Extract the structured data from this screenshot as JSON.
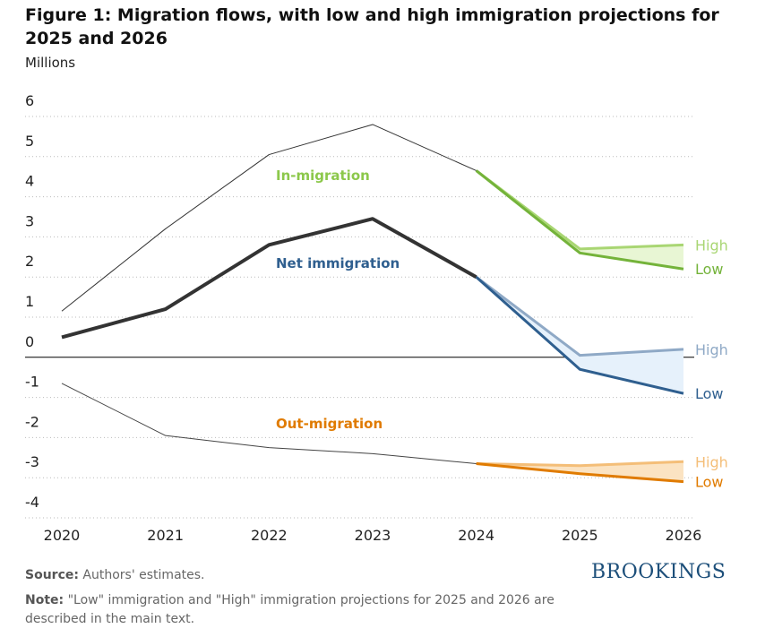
{
  "chart_data": {
    "type": "line",
    "title": "Figure 1: Migration flows, with low and high immigration projections for 2025 and 2026",
    "y_label": "Millions",
    "x": [
      2020,
      2021,
      2022,
      2023,
      2024,
      2025,
      2026
    ],
    "xlim": [
      2020,
      2026
    ],
    "xticks": [
      2020,
      2021,
      2022,
      2023,
      2024,
      2025,
      2026
    ],
    "ylim": [
      -4,
      6
    ],
    "yticks": [
      -4,
      -3,
      -2,
      -1,
      0,
      1,
      2,
      3,
      4,
      5,
      6
    ],
    "grid": true,
    "series": [
      {
        "name": "In-migration",
        "color": "#333333",
        "label_color": "#8cc84b",
        "high_color": "#a9d673",
        "low_color": "#74b33a",
        "fill_color": "#e8f6d4",
        "line_width": 1,
        "values": [
          1.15,
          3.2,
          5.05,
          5.8,
          4.65,
          null,
          null
        ],
        "high": [
          null,
          null,
          null,
          null,
          null,
          2.7,
          2.8
        ],
        "low": [
          null,
          null,
          null,
          null,
          null,
          2.6,
          2.2
        ],
        "high_label": "High",
        "low_label": "Low"
      },
      {
        "name": "Net immigration",
        "color": "#333333",
        "label_color": "#2f5f8f",
        "high_color": "#8fa9c6",
        "low_color": "#2f5f8f",
        "fill_color": "#e6f1fb",
        "line_width": 4,
        "values": [
          0.5,
          1.2,
          2.8,
          3.45,
          2.0,
          null,
          null
        ],
        "high": [
          null,
          null,
          null,
          null,
          null,
          0.05,
          0.2
        ],
        "low": [
          null,
          null,
          null,
          null,
          null,
          -0.3,
          -0.9
        ],
        "high_label": "High",
        "low_label": "Low"
      },
      {
        "name": "Out-migration",
        "color": "#444444",
        "label_color": "#e07b00",
        "high_color": "#f4be78",
        "low_color": "#e07b00",
        "fill_color": "#fbe3c2",
        "line_width": 1,
        "values": [
          -0.65,
          -1.95,
          -2.25,
          -2.4,
          -2.65,
          null,
          null
        ],
        "high": [
          null,
          null,
          null,
          null,
          null,
          -2.7,
          -2.6
        ],
        "low": [
          null,
          null,
          null,
          null,
          null,
          -2.9,
          -3.1
        ],
        "high_label": "High",
        "low_label": "Low"
      }
    ],
    "source_label": "Source:",
    "source": "Authors' estimates.",
    "note_label": "Note:",
    "note": "\"Low\" immigration and \"High\" immigration projections for 2025 and 2026 are described in the main text.",
    "logo": "BROOKINGS"
  }
}
